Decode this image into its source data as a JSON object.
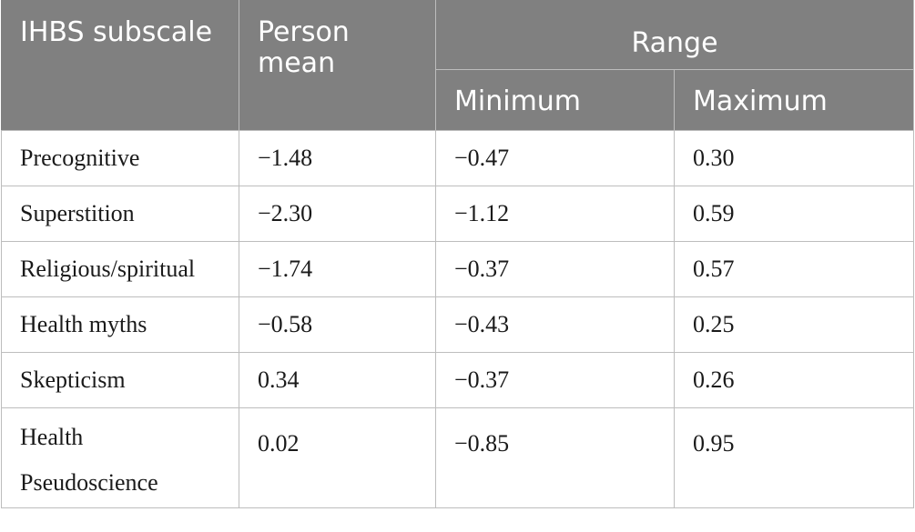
{
  "table": {
    "headers": {
      "subscale": "IHBS subscale",
      "person_mean": "Person mean",
      "range": "Range",
      "minimum": "Minimum",
      "maximum": "Maximum"
    },
    "rows": [
      {
        "subscale": "Precognitive",
        "person_mean": "−1.48",
        "minimum": "−0.47",
        "maximum": "0.30"
      },
      {
        "subscale": "Superstition",
        "person_mean": "−2.30",
        "minimum": "−1.12",
        "maximum": "0.59"
      },
      {
        "subscale": "Religious/spiritual",
        "person_mean": "−1.74",
        "minimum": "−0.37",
        "maximum": "0.57"
      },
      {
        "subscale": "Health myths",
        "person_mean": "−0.58",
        "minimum": "−0.43",
        "maximum": "0.25"
      },
      {
        "subscale": "Skepticism",
        "person_mean": "0.34",
        "minimum": "−0.37",
        "maximum": "0.26"
      },
      {
        "subscale": "Health Pseudoscience",
        "person_mean": "0.02",
        "minimum": "−0.85",
        "maximum": "0.95"
      }
    ]
  },
  "colors": {
    "header_bg": "#808080",
    "header_text": "#ffffff",
    "grid": "#bdbdbd"
  }
}
